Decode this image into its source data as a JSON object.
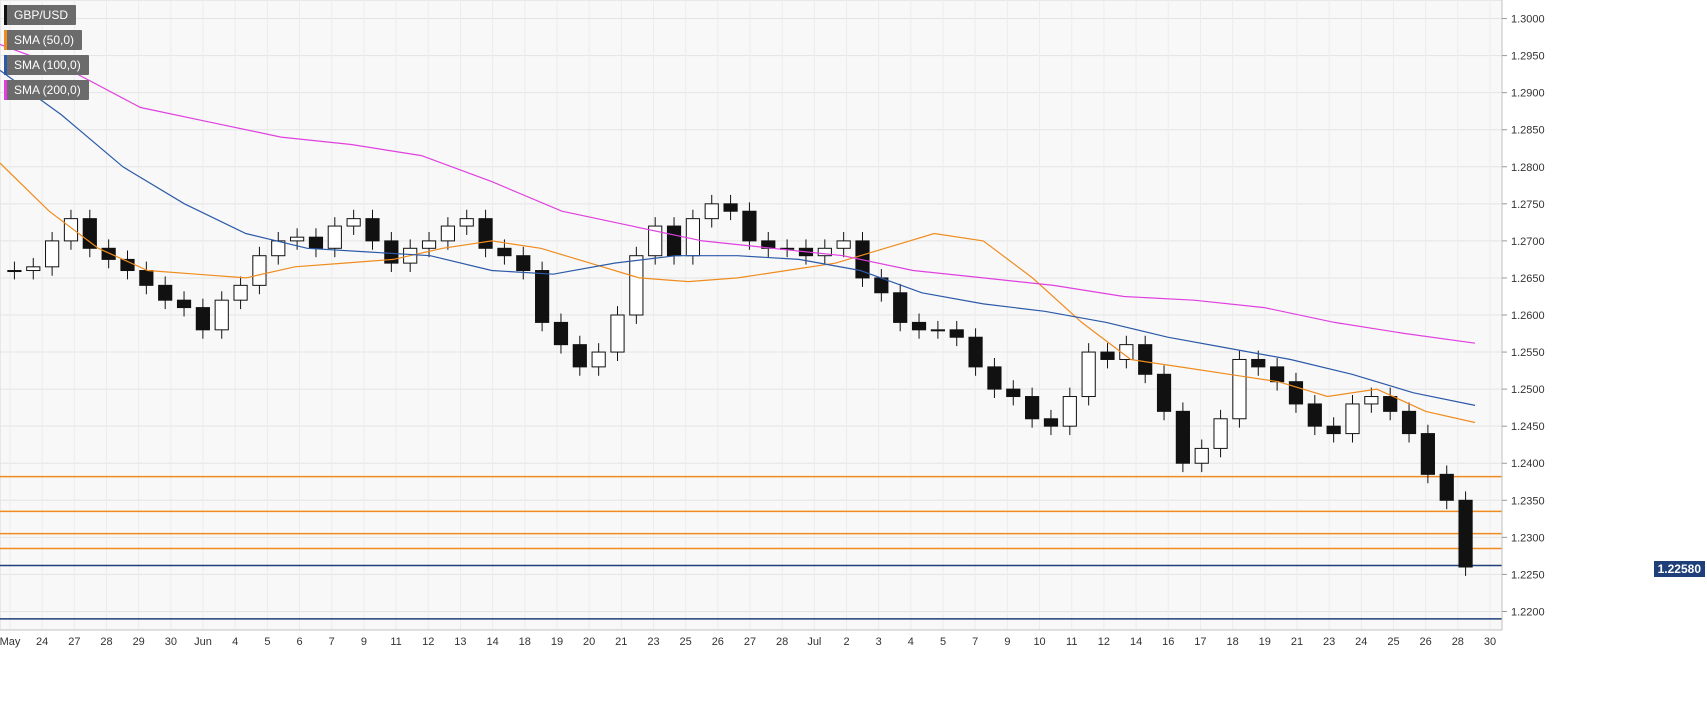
{
  "symbol": "GBP/USD",
  "legend": [
    {
      "label": "GBP/USD",
      "color": "#111111"
    },
    {
      "label": "SMA (50,0)",
      "color": "#f08c1f"
    },
    {
      "label": "SMA (100,0)",
      "color": "#2c5aa8"
    },
    {
      "label": "SMA (200,0)",
      "color": "#e040e0"
    }
  ],
  "current_price_label": "1.22580",
  "chart_data": {
    "type": "line",
    "title": "",
    "ylim": [
      1.2175,
      1.3025
    ],
    "y_ticks": [
      "1.2200",
      "1.2250",
      "1.2300",
      "1.2350",
      "1.2400",
      "1.2450",
      "1.2500",
      "1.2550",
      "1.2600",
      "1.2650",
      "1.2700",
      "1.2750",
      "1.2800",
      "1.2850",
      "1.2900",
      "1.2950",
      "1.3000"
    ],
    "x_ticks": [
      "May",
      "24",
      "27",
      "28",
      "29",
      "30",
      "Jun",
      "4",
      "5",
      "6",
      "7",
      "9",
      "11",
      "12",
      "13",
      "14",
      "18",
      "19",
      "20",
      "21",
      "23",
      "25",
      "26",
      "27",
      "28",
      "Jul",
      "2",
      "3",
      "4",
      "5",
      "7",
      "9",
      "10",
      "11",
      "12",
      "14",
      "16",
      "17",
      "18",
      "19",
      "21",
      "23",
      "24",
      "25",
      "26",
      "28",
      "30"
    ],
    "price": [
      1.266,
      1.2665,
      1.27,
      1.273,
      1.269,
      1.2675,
      1.266,
      1.264,
      1.262,
      1.261,
      1.258,
      1.262,
      1.264,
      1.268,
      1.27,
      1.2705,
      1.269,
      1.272,
      1.273,
      1.27,
      1.267,
      1.269,
      1.27,
      1.272,
      1.273,
      1.269,
      1.268,
      1.266,
      1.259,
      1.256,
      1.253,
      1.255,
      1.26,
      1.268,
      1.272,
      1.268,
      1.273,
      1.275,
      1.274,
      1.27,
      1.269,
      1.269,
      1.268,
      1.269,
      1.27,
      1.265,
      1.263,
      1.259,
      1.258,
      1.258,
      1.257,
      1.253,
      1.25,
      1.249,
      1.246,
      1.245,
      1.249,
      1.255,
      1.254,
      1.256,
      1.252,
      1.247,
      1.24,
      1.242,
      1.246,
      1.254,
      1.253,
      1.251,
      1.248,
      1.245,
      1.244,
      1.248,
      1.249,
      1.247,
      1.244,
      1.2385,
      1.235,
      1.226
    ],
    "series": [
      {
        "name": "SMA (50,0)",
        "color": "#f08c1f",
        "values": [
          1.2805,
          1.274,
          1.269,
          1.266,
          1.2655,
          1.265,
          1.2665,
          1.267,
          1.2675,
          1.269,
          1.27,
          1.269,
          1.267,
          1.265,
          1.2645,
          1.265,
          1.266,
          1.267,
          1.269,
          1.271,
          1.27,
          1.265,
          1.259,
          1.254,
          1.253,
          1.252,
          1.251,
          1.249,
          1.25,
          1.247,
          1.2455
        ]
      },
      {
        "name": "SMA (100,0)",
        "color": "#2c5aa8",
        "values": [
          1.293,
          1.287,
          1.28,
          1.275,
          1.271,
          1.269,
          1.2685,
          1.268,
          1.266,
          1.2655,
          1.267,
          1.268,
          1.268,
          1.2675,
          1.266,
          1.263,
          1.2615,
          1.2605,
          1.259,
          1.257,
          1.2555,
          1.254,
          1.252,
          1.2495,
          1.2478
        ]
      },
      {
        "name": "SMA (200,0)",
        "color": "#e040e0",
        "values": [
          1.2965,
          1.293,
          1.288,
          1.286,
          1.284,
          1.283,
          1.2815,
          1.278,
          1.274,
          1.272,
          1.27,
          1.269,
          1.268,
          1.266,
          1.265,
          1.264,
          1.2625,
          1.262,
          1.261,
          1.259,
          1.2575,
          1.2562
        ]
      }
    ],
    "horizontal_levels": [
      {
        "value": 1.2382,
        "color": "#f08c1f"
      },
      {
        "value": 1.2335,
        "color": "#f08c1f"
      },
      {
        "value": 1.2305,
        "color": "#f08c1f"
      },
      {
        "value": 1.2285,
        "color": "#f08c1f"
      },
      {
        "value": 1.2262,
        "color": "#1f3f7a"
      },
      {
        "value": 1.219,
        "color": "#1f3f7a"
      }
    ]
  }
}
